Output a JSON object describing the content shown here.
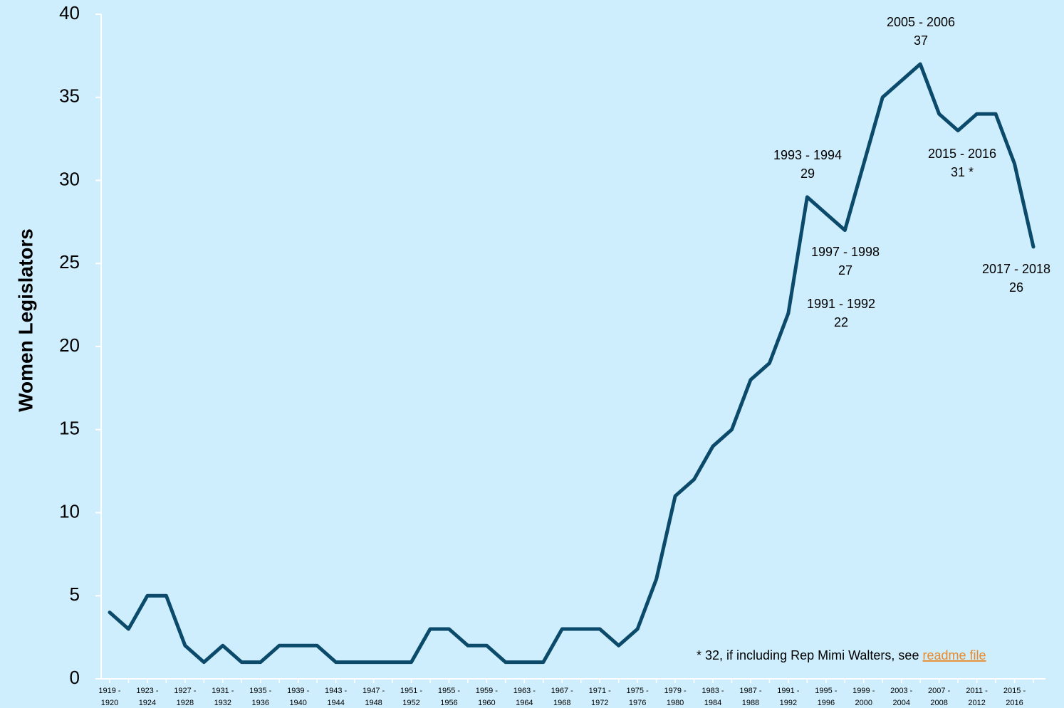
{
  "chart_data": {
    "type": "line",
    "y_label": "Women Legislators",
    "categories": [
      "1919 - 1920",
      null,
      "1923 - 1924",
      null,
      "1927 - 1928",
      null,
      "1931 - 1932",
      null,
      "1935 - 1936",
      null,
      "1939 - 1940",
      null,
      "1943 - 1944",
      null,
      "1947 - 1948",
      null,
      "1951 - 1952",
      null,
      "1955 - 1956",
      null,
      "1959 - 1960",
      null,
      "1963 - 1964",
      null,
      "1967 - 1968",
      null,
      "1971 - 1972",
      null,
      "1975 - 1976",
      null,
      "1979 - 1980",
      null,
      "1983 - 1984",
      null,
      "1987 - 1988",
      null,
      "1991 - 1992",
      null,
      "1995 - 1996",
      null,
      "1999 - 2000",
      null,
      "2003 - 2004",
      null,
      "2007 - 2008",
      null,
      "2011 - 2012",
      null,
      "2015 - 2016",
      null
    ],
    "series": [
      {
        "name": "Women Legislators",
        "color": "#0b4a6a",
        "values": [
          4,
          3,
          5,
          5,
          2,
          1,
          2,
          1,
          1,
          2,
          2,
          2,
          1,
          1,
          1,
          1,
          1,
          3,
          3,
          2,
          2,
          1,
          1,
          1,
          3,
          3,
          3,
          2,
          3,
          6,
          11,
          12,
          14,
          15,
          18,
          19,
          22,
          29,
          28,
          27,
          31,
          35,
          36,
          37,
          34,
          33,
          34,
          34,
          31,
          26
        ]
      }
    ],
    "ylim": [
      0,
      40
    ],
    "yticks": [
      0,
      5,
      10,
      15,
      20,
      25,
      30,
      35,
      40
    ],
    "annotations": [
      {
        "text": "2005 - 2006",
        "value": 37
      },
      {
        "text": "1993 - 1994",
        "value": 29
      },
      {
        "text": "2015 - 2016",
        "value_label": "31 *"
      },
      {
        "text": "1997 - 1998",
        "value": 27
      },
      {
        "text": "2017 - 2018",
        "value": 26
      },
      {
        "text": "1991 - 1992",
        "value": 22
      }
    ],
    "footnote": "* 32, if including Rep Mimi Walters, see",
    "footnote_link": "readme file"
  }
}
